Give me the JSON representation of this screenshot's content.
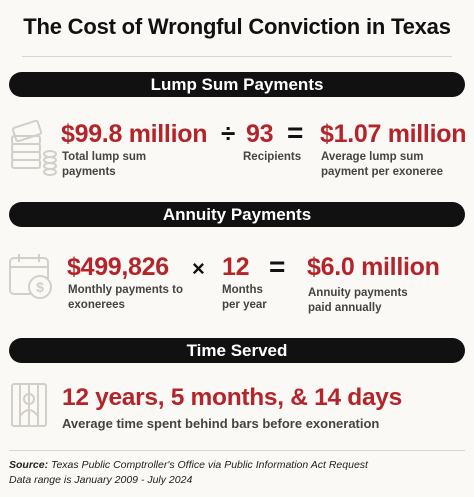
{
  "title": "The Cost of Wrongful Conviction in Texas",
  "sections": {
    "lump": {
      "header": "Lump Sum Payments",
      "total_value": "$99.8 million",
      "total_label": "Total lump sum payments",
      "operator1": "÷",
      "recipients_value": "93",
      "recipients_label": "Recipients",
      "operator2": "=",
      "average_value": "$1.07 million",
      "average_label": "Average lump sum payment per exoneree"
    },
    "annuity": {
      "header": "Annuity Payments",
      "monthly_value": "$499,826",
      "monthly_label": "Monthly payments to exonerees",
      "operator1": "×",
      "months_value": "12",
      "months_label": "Months per year",
      "operator2": "=",
      "annual_value": "$6.0 million",
      "annual_label": "Annuity payments paid annually"
    },
    "time": {
      "header": "Time Served",
      "value": "12 years, 5 months, & 14 days",
      "label": "Average time spent behind bars before exoneration"
    }
  },
  "footer": {
    "source_label": "Source:",
    "source_text": "Texas Public Comptroller's Office via Public Information Act Request",
    "range_text": "Data range is January 2009 - July 2024"
  },
  "icons": {
    "lump": "money-stack-icon",
    "annuity": "calendar-dollar-icon",
    "time": "prison-bars-icon"
  },
  "colors": {
    "accent": "#b3242b",
    "band": "#111111",
    "background": "#fbf9f5"
  }
}
